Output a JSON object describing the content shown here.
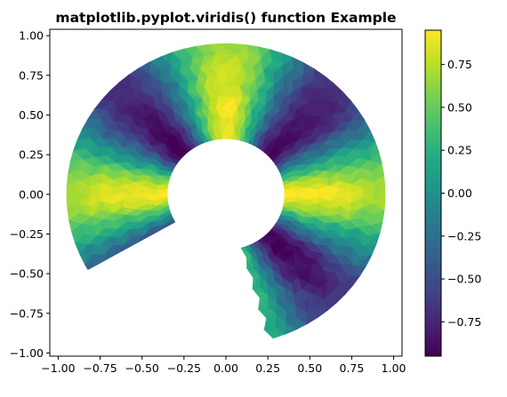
{
  "chart_data": {
    "type": "heatmap",
    "plot_kind": "tripcolor",
    "title": "matplotlib.pyplot.viridis() function Example",
    "xlabel": "",
    "ylabel": "",
    "xlim": [
      -1.05,
      1.05
    ],
    "ylim": [
      -1.02,
      1.04
    ],
    "xticks": [
      -1.0,
      -0.75,
      -0.5,
      -0.25,
      0.0,
      0.25,
      0.5,
      0.75,
      1.0
    ],
    "xtick_labels": [
      "−1.00",
      "−0.75",
      "−0.50",
      "−0.25",
      "0.00",
      "0.25",
      "0.50",
      "0.75",
      "1.00"
    ],
    "yticks": [
      -1.0,
      -0.75,
      -0.5,
      -0.25,
      0.0,
      0.25,
      0.5,
      0.75,
      1.0
    ],
    "ytick_labels": [
      "−1.00",
      "−0.75",
      "−0.50",
      "−0.25",
      "0.00",
      "0.25",
      "0.50",
      "0.75",
      "1.00"
    ],
    "colormap": "viridis",
    "colorbar": {
      "vmin": -0.95,
      "vmax": 0.95,
      "ticks": [
        -0.75,
        -0.5,
        -0.25,
        0.0,
        0.25,
        0.5,
        0.75
      ],
      "tick_labels": [
        "−0.75",
        "−0.50",
        "−0.25",
        "0.00",
        "0.25",
        "0.50",
        "0.75"
      ]
    },
    "domain": {
      "shape": "annular sector",
      "inner_radius": 0.35,
      "outer_radius": 0.95,
      "angle_start_deg": -75,
      "angle_end_deg": 210
    },
    "field": {
      "description": "z = cos(n*theta) * cos(radius)-style pattern with maxima at 90 and 180 degrees and along the lower edge; minima around 45, 135 and 225 degrees",
      "angular_frequency": 4,
      "peak_value": 0.95,
      "trough_value": -0.95
    },
    "grid": false,
    "legend": "none"
  }
}
